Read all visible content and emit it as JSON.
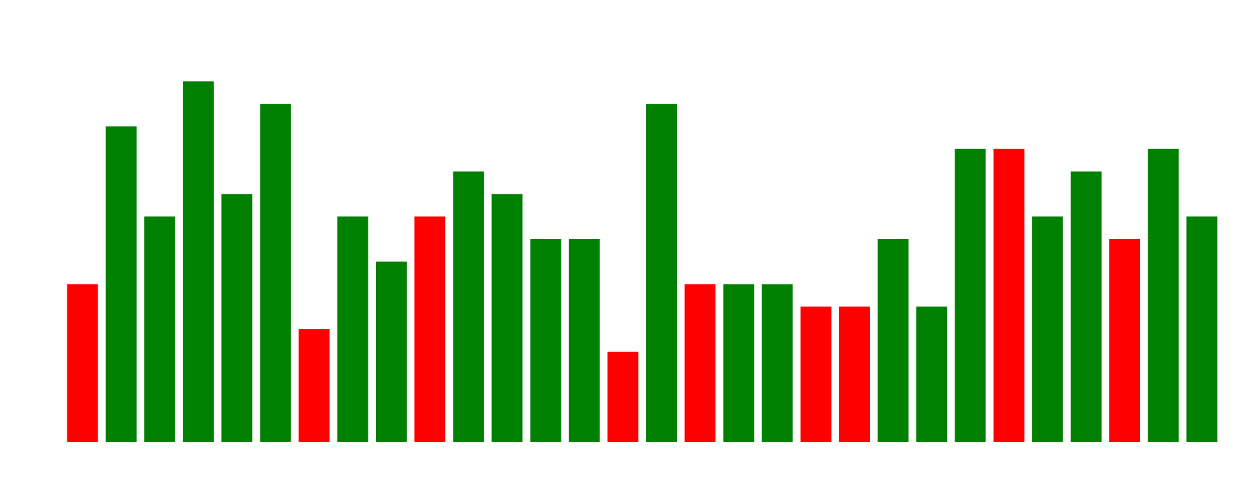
{
  "chart_data": {
    "type": "bar",
    "values": [
      7,
      14,
      10,
      16,
      11,
      15,
      5,
      10,
      8,
      10,
      12,
      11,
      9,
      9,
      4,
      15,
      7,
      7,
      7,
      6,
      6,
      9,
      6,
      13,
      13,
      10,
      12,
      9,
      13,
      10
    ],
    "colors": [
      "#ff0000",
      "#008000",
      "#008000",
      "#008000",
      "#008000",
      "#008000",
      "#ff0000",
      "#008000",
      "#008000",
      "#ff0000",
      "#008000",
      "#008000",
      "#008000",
      "#008000",
      "#ff0000",
      "#008000",
      "#ff0000",
      "#008000",
      "#008000",
      "#ff0000",
      "#ff0000",
      "#008000",
      "#008000",
      "#008000",
      "#ff0000",
      "#008000",
      "#008000",
      "#ff0000",
      "#008000",
      "#008000"
    ],
    "ylim": [
      0,
      19
    ]
  }
}
